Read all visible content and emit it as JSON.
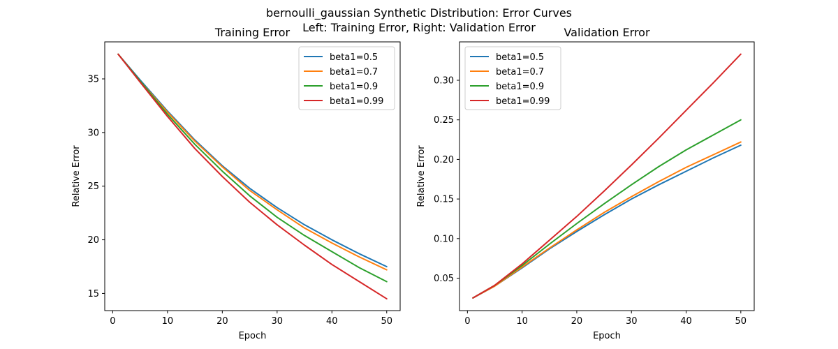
{
  "suptitle_line1": "bernoulli_gaussian Synthetic Distribution: Error Curves",
  "suptitle_line2": "Left: Training Error, Right: Validation Error",
  "chart_data": [
    {
      "type": "line",
      "title": "Training Error",
      "xlabel": "Epoch",
      "ylabel": "Relative Error",
      "xlim": [
        -1.45,
        52.45
      ],
      "ylim": [
        13.4,
        38.45
      ],
      "xticks": [
        0,
        10,
        20,
        30,
        40,
        50
      ],
      "yticks": [
        15,
        20,
        25,
        30,
        35
      ],
      "grid": false,
      "legend": "top-right",
      "x": [
        1,
        5,
        10,
        15,
        20,
        25,
        30,
        35,
        40,
        45,
        50
      ],
      "series": [
        {
          "name": "beta1=0.5",
          "color": "#1f77b4",
          "values": [
            37.3,
            34.9,
            32.0,
            29.3,
            26.9,
            24.8,
            23.0,
            21.4,
            20.0,
            18.7,
            17.5
          ]
        },
        {
          "name": "beta1=0.7",
          "color": "#ff7f0e",
          "values": [
            37.3,
            34.8,
            31.9,
            29.2,
            26.8,
            24.6,
            22.8,
            21.1,
            19.7,
            18.4,
            17.2
          ]
        },
        {
          "name": "beta1=0.9",
          "color": "#2ca02c",
          "values": [
            37.3,
            34.8,
            31.7,
            28.9,
            26.4,
            24.1,
            22.1,
            20.4,
            18.9,
            17.4,
            16.1
          ]
        },
        {
          "name": "beta1=0.99",
          "color": "#d62728",
          "values": [
            37.3,
            34.7,
            31.5,
            28.5,
            25.9,
            23.5,
            21.4,
            19.5,
            17.7,
            16.1,
            14.5
          ]
        }
      ]
    },
    {
      "type": "line",
      "title": "Validation Error",
      "xlabel": "Epoch",
      "ylabel": "Relative Error",
      "xlim": [
        -1.45,
        52.45
      ],
      "ylim": [
        0.009,
        0.3485
      ],
      "xticks": [
        0,
        10,
        20,
        30,
        40,
        50
      ],
      "yticks": [
        0.05,
        0.1,
        0.15,
        0.2,
        0.25,
        0.3
      ],
      "ytick_labels": [
        "0.05",
        "0.10",
        "0.15",
        "0.20",
        "0.25",
        "0.30"
      ],
      "grid": false,
      "legend": "top-left",
      "x": [
        1,
        5,
        10,
        15,
        20,
        25,
        30,
        35,
        40,
        45,
        50
      ],
      "series": [
        {
          "name": "beta1=0.5",
          "color": "#1f77b4",
          "values": [
            0.025,
            0.04,
            0.063,
            0.087,
            0.109,
            0.13,
            0.15,
            0.168,
            0.185,
            0.202,
            0.218
          ]
        },
        {
          "name": "beta1=0.7",
          "color": "#ff7f0e",
          "values": [
            0.025,
            0.04,
            0.064,
            0.088,
            0.111,
            0.133,
            0.153,
            0.172,
            0.19,
            0.206,
            0.222
          ]
        },
        {
          "name": "beta1=0.9",
          "color": "#2ca02c",
          "values": [
            0.025,
            0.041,
            0.066,
            0.093,
            0.119,
            0.144,
            0.168,
            0.191,
            0.212,
            0.231,
            0.25
          ]
        },
        {
          "name": "beta1=0.99",
          "color": "#d62728",
          "values": [
            0.025,
            0.041,
            0.068,
            0.098,
            0.128,
            0.16,
            0.193,
            0.227,
            0.262,
            0.297,
            0.333
          ]
        }
      ]
    }
  ]
}
